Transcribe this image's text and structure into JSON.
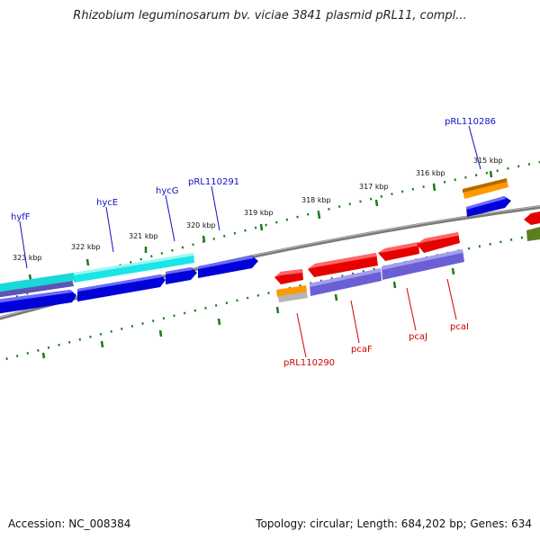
{
  "title": "Rhizobium leguminosarum bv. viciae 3841 plasmid pRL11, compl...",
  "footer": {
    "accession": "Accession: NC_008384",
    "summary": "Topology: circular; Length: 684,202 bp; Genes: 634"
  },
  "ticks": [
    "315 kbp",
    "316 kbp",
    "317 kbp",
    "318 kbp",
    "319 kbp",
    "320 kbp",
    "321 kbp",
    "322 kbp",
    "323 kbp"
  ],
  "genes_top": [
    "pRL110286",
    "pRL110291",
    "hycG",
    "hycE",
    "hyfF"
  ],
  "genes_bottom": [
    "pRL110290",
    "pcaF",
    "pcaJ",
    "pcaI"
  ],
  "colors": {
    "forward_cds": "#0000e6",
    "reverse_cds": "#e60000",
    "cyan_feature": "#19e6e6",
    "purple_feature": "#6b5fd6",
    "orange_feature": "#ff9900",
    "olive_feature": "#5a7f1f",
    "backbone": "#808080",
    "tick_green": "#1a7a1a"
  }
}
